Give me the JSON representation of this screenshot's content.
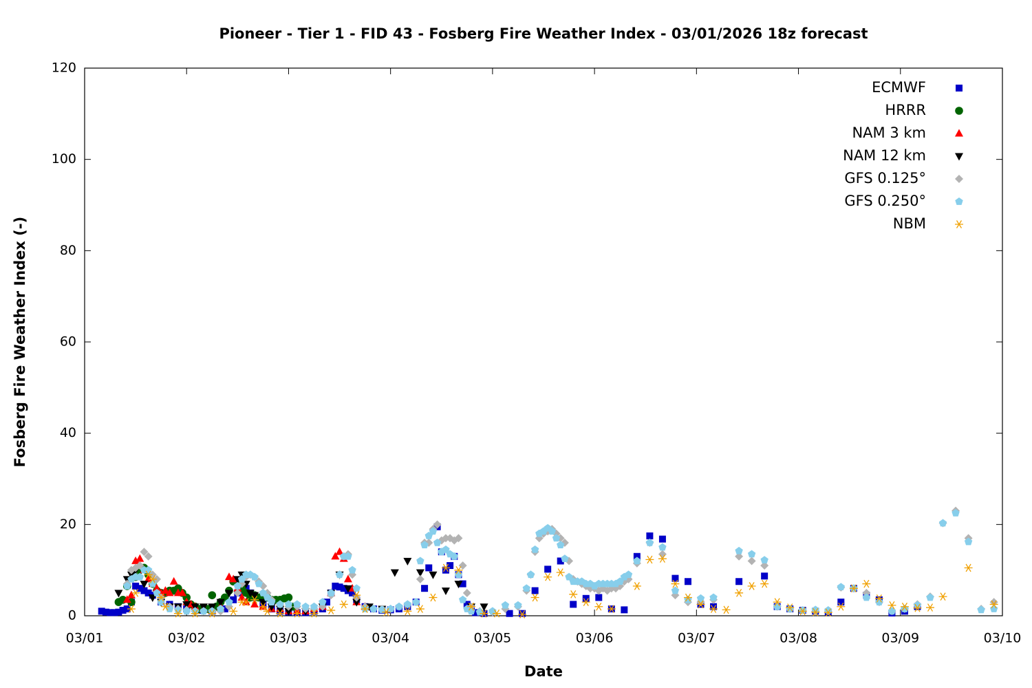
{
  "chart_data": {
    "type": "scatter",
    "title": "Pioneer - Tier 1 - FID 43 - Fosberg Fire Weather Index - 03/01/2026 18z forecast",
    "x_label": "Date",
    "y_label": "Fosberg Fire Weather Index (-)",
    "xlim": [
      0,
      216
    ],
    "xticks": [
      {
        "value": 0,
        "label": "03/01"
      },
      {
        "value": 24,
        "label": "03/02"
      },
      {
        "value": 48,
        "label": "03/03"
      },
      {
        "value": 72,
        "label": "03/04"
      },
      {
        "value": 96,
        "label": "03/05"
      },
      {
        "value": 120,
        "label": "03/06"
      },
      {
        "value": 144,
        "label": "03/07"
      },
      {
        "value": 168,
        "label": "03/08"
      },
      {
        "value": 192,
        "label": "03/09"
      },
      {
        "value": 216,
        "label": "03/10"
      }
    ],
    "ylim": [
      0,
      120
    ],
    "yticks": [
      0,
      20,
      40,
      60,
      80,
      100,
      120
    ],
    "grid": false,
    "legend": "upper right",
    "series": [
      {
        "name": "ECMWF",
        "color": "#0000c8",
        "marker": "square",
        "x": [
          4,
          5,
          6,
          7,
          8,
          9,
          10,
          11,
          12,
          13,
          14,
          15,
          16,
          18,
          20,
          22,
          24,
          27,
          30,
          33,
          35,
          36,
          37,
          38,
          39,
          40,
          42,
          44,
          46,
          48,
          50,
          52,
          54,
          56,
          57,
          58,
          59,
          60,
          61,
          62,
          63,
          64,
          66,
          68,
          70,
          72,
          74,
          76,
          78,
          80,
          81,
          83,
          84,
          85,
          86,
          87,
          88,
          89,
          90,
          91,
          92,
          94,
          100,
          103,
          106,
          109,
          112,
          115,
          118,
          121,
          124,
          127,
          130,
          133,
          136,
          139,
          142,
          145,
          148,
          154,
          160,
          163,
          166,
          169,
          172,
          175,
          178,
          181,
          184,
          187,
          190,
          193,
          196
        ],
        "values": [
          1,
          0.8,
          0.7,
          0.7,
          0.8,
          1.2,
          1.5,
          3,
          6.5,
          6,
          5.5,
          5,
          4.5,
          3,
          2.5,
          2,
          1.5,
          1.2,
          1,
          1.5,
          3.5,
          5,
          5.5,
          6,
          5,
          4,
          2.5,
          1.5,
          1,
          0.8,
          0.7,
          0.7,
          1,
          1.5,
          3,
          5,
          6.5,
          6.3,
          6,
          5.5,
          5,
          3.5,
          2,
          1.5,
          1.2,
          1.3,
          1.5,
          2,
          3,
          6,
          10.5,
          19.5,
          14,
          10,
          11,
          13,
          9,
          7,
          2.5,
          1.5,
          0.7,
          0.5,
          0.5,
          0.5,
          5.5,
          10.2,
          12,
          2.5,
          3.8,
          4,
          1.5,
          1.3,
          13,
          17.5,
          16.8,
          8.2,
          7.5,
          2.5,
          2,
          7.5,
          8.7,
          2,
          1.5,
          1.2,
          1,
          0.8,
          3,
          6,
          4.5,
          3.5,
          0.6,
          1,
          2
        ]
      },
      {
        "name": "HRRR",
        "color": "#006400",
        "marker": "circle",
        "x": [
          8,
          9,
          10,
          11,
          12,
          13,
          14,
          15,
          16,
          17,
          18,
          19,
          20,
          21,
          22,
          23,
          24,
          25,
          26,
          27,
          28,
          29,
          30,
          31,
          32,
          33,
          34,
          35,
          36,
          37,
          38,
          39,
          40,
          41,
          42,
          43,
          44,
          45,
          46,
          47,
          48,
          49
        ],
        "values": [
          3,
          3.5,
          6.5,
          3,
          8.5,
          10,
          10.5,
          9,
          7,
          5.5,
          5,
          5,
          5.5,
          5.5,
          6,
          5,
          4,
          2.5,
          2,
          1.5,
          1.2,
          1.5,
          4.5,
          2,
          3,
          4,
          5.5,
          7.5,
          7,
          6,
          5,
          4,
          4.5,
          4,
          4.5,
          4,
          3.5,
          3.5,
          3.5,
          3.8,
          4,
          2
        ]
      },
      {
        "name": "NAM 3 km",
        "color": "#ff0000",
        "marker": "triangle",
        "x": [
          10,
          11,
          12,
          13,
          14,
          15,
          16,
          17,
          18,
          19,
          20,
          21,
          22,
          23,
          24,
          25,
          26,
          28,
          30,
          32,
          34,
          35,
          36,
          37,
          38,
          40,
          42,
          44,
          46,
          48,
          50,
          52,
          54,
          56,
          58,
          59,
          60,
          61,
          62,
          63,
          64,
          66
        ],
        "values": [
          3.5,
          4.5,
          12,
          12.5,
          10,
          8,
          7,
          6,
          5,
          5.5,
          5,
          7.5,
          5,
          5,
          3,
          2.5,
          2,
          1.5,
          1.5,
          2,
          8.5,
          8,
          6,
          4,
          3,
          2.5,
          2,
          1.5,
          1.5,
          1,
          1,
          1,
          1.5,
          2,
          5,
          13,
          14,
          12.5,
          8,
          6,
          3,
          2
        ]
      },
      {
        "name": "NAM 12 km",
        "color": "#000000",
        "marker": "triangle-down",
        "x": [
          8,
          10,
          11,
          12,
          14,
          16,
          18,
          20,
          22,
          24,
          26,
          28,
          30,
          32,
          34,
          36,
          37,
          38,
          39,
          40,
          42,
          44,
          46,
          48,
          52,
          56,
          58,
          60,
          62,
          64,
          67,
          70,
          73,
          76,
          79,
          82,
          85,
          88,
          91,
          94
        ],
        "values": [
          5,
          8,
          9,
          10,
          7,
          4,
          3,
          2,
          2,
          2.5,
          2,
          2,
          2,
          3,
          5,
          8,
          9,
          7,
          5,
          4.5,
          3,
          2,
          1.5,
          1,
          1,
          2,
          5,
          9,
          6,
          3,
          2,
          1.5,
          9.5,
          12,
          9.5,
          9,
          5.5,
          7,
          2,
          2
        ]
      },
      {
        "name": "GFS 0.125°",
        "color": "#b3b3b3",
        "marker": "diamond",
        "x": [
          10,
          11,
          12,
          13,
          14,
          15,
          16,
          17,
          18,
          20,
          22,
          24,
          26,
          28,
          30,
          32,
          34,
          36,
          37,
          38,
          39,
          40,
          41,
          42,
          43,
          44,
          46,
          48,
          50,
          52,
          54,
          56,
          58,
          60,
          61,
          62,
          63,
          64,
          66,
          68,
          70,
          72,
          74,
          76,
          78,
          79,
          80,
          81,
          82,
          83,
          84,
          85,
          86,
          87,
          88,
          89,
          90,
          91,
          93,
          96,
          99,
          102,
          104,
          105,
          106,
          107,
          108,
          109,
          110,
          111,
          112,
          113,
          114,
          115,
          116,
          117,
          118,
          119,
          120,
          121,
          122,
          123,
          124,
          125,
          126,
          127,
          128,
          130,
          133,
          136,
          139,
          142,
          145,
          148,
          154,
          157,
          160,
          163,
          166,
          169,
          172,
          175,
          178,
          181,
          184,
          187,
          190,
          193,
          196,
          199,
          202,
          205,
          208,
          211,
          214
        ],
        "values": [
          7,
          10,
          10.5,
          11,
          14,
          13,
          9,
          8,
          4,
          2,
          1.5,
          1.3,
          1,
          1,
          1,
          1,
          2,
          5,
          7,
          8.5,
          9,
          8.5,
          7.5,
          6.5,
          5,
          3.5,
          2.5,
          2,
          2,
          1.5,
          1.5,
          2,
          4.5,
          9,
          13,
          13.5,
          9,
          4,
          2,
          1.5,
          1.5,
          1.5,
          2,
          2.5,
          3,
          8,
          16,
          16,
          19,
          20,
          16.5,
          17,
          17,
          16.5,
          17,
          11,
          5,
          2,
          1,
          0.8,
          1.5,
          2,
          5.5,
          9,
          14,
          17,
          18,
          18.5,
          19,
          18,
          17,
          16,
          12,
          8,
          7.5,
          7,
          6.5,
          6,
          6,
          5.5,
          6,
          5.5,
          6,
          6,
          6.5,
          7.5,
          8,
          11.5,
          16,
          13.5,
          4.5,
          3,
          3,
          3.5,
          13,
          12,
          11,
          2,
          1.5,
          1.2,
          1,
          1,
          6.2,
          6,
          5,
          3,
          1,
          1.5,
          2.5,
          4.2,
          20.3,
          23,
          17,
          1.5,
          3
        ]
      },
      {
        "name": "GFS 0.250°",
        "color": "#87ceeb",
        "marker": "pentagon",
        "x": [
          10,
          11,
          12,
          13,
          14,
          15,
          16,
          17,
          18,
          20,
          22,
          24,
          26,
          28,
          30,
          32,
          34,
          36,
          37,
          38,
          39,
          40,
          41,
          42,
          43,
          44,
          46,
          48,
          50,
          52,
          54,
          56,
          58,
          60,
          61,
          62,
          63,
          64,
          66,
          68,
          70,
          72,
          74,
          76,
          78,
          79,
          80,
          81,
          82,
          83,
          84,
          85,
          86,
          87,
          88,
          89,
          90,
          91,
          93,
          96,
          99,
          102,
          104,
          105,
          106,
          107,
          108,
          109,
          110,
          111,
          112,
          113,
          114,
          115,
          116,
          117,
          118,
          119,
          120,
          121,
          122,
          123,
          124,
          125,
          126,
          127,
          128,
          130,
          133,
          136,
          139,
          142,
          145,
          148,
          154,
          157,
          160,
          163,
          166,
          169,
          172,
          175,
          178,
          181,
          184,
          187,
          190,
          193,
          196,
          199,
          202,
          205,
          208,
          211,
          214
        ],
        "values": [
          6.5,
          8,
          8.5,
          8.5,
          10,
          10,
          7,
          5,
          3,
          1.5,
          1.2,
          1,
          1,
          1,
          1,
          1.5,
          3,
          6.5,
          8,
          9,
          9,
          8.5,
          7,
          5,
          4,
          3,
          2.5,
          2.5,
          2.5,
          2,
          2,
          3,
          5,
          9,
          13,
          13,
          10,
          6,
          1.5,
          1.5,
          1.3,
          1.5,
          2,
          2.5,
          3,
          12,
          15.5,
          17.5,
          18.5,
          16,
          14,
          14.5,
          13.5,
          13,
          9,
          3.5,
          1.5,
          1,
          0.8,
          1,
          2.3,
          2.3,
          6,
          9,
          14.5,
          18,
          18.5,
          19.2,
          18.5,
          17,
          15.5,
          12.5,
          8.5,
          7.5,
          7.5,
          7.5,
          7,
          7,
          6.5,
          7,
          7,
          7,
          7,
          7,
          7.5,
          8.5,
          9,
          12,
          16,
          15,
          5.5,
          3.5,
          3.8,
          4,
          14.2,
          13.5,
          12.2,
          2,
          1.5,
          1.2,
          1.3,
          1.2,
          6.3,
          6,
          4,
          3,
          1,
          1.5,
          2.3,
          4,
          20.3,
          22.5,
          16.2,
          1.3,
          1.5
        ]
      },
      {
        "name": "NBM",
        "color": "#f0a000",
        "marker": "asterisk",
        "x": [
          11,
          12,
          15,
          16,
          18,
          19,
          22,
          26,
          30,
          35,
          37,
          38,
          40,
          42,
          43,
          46,
          50,
          54,
          58,
          61,
          64,
          66,
          71,
          76,
          79,
          82,
          85,
          88,
          91,
          94,
          97,
          103,
          106,
          109,
          112,
          115,
          118,
          121,
          124,
          130,
          133,
          136,
          139,
          142,
          145,
          148,
          151,
          154,
          157,
          160,
          163,
          166,
          169,
          172,
          175,
          178,
          181,
          184,
          187,
          190,
          193,
          196,
          199,
          202,
          208,
          214
        ],
        "values": [
          1.5,
          5,
          9,
          8,
          4,
          2,
          0.5,
          0.5,
          0.5,
          1,
          3,
          3,
          3.5,
          2,
          1,
          0.5,
          0.5,
          0.5,
          1.2,
          2.5,
          4.5,
          1.5,
          0.8,
          1,
          1.5,
          4,
          10.5,
          10,
          2,
          0.5,
          0.5,
          0.3,
          4,
          8.5,
          9.5,
          4.7,
          3,
          2,
          1.5,
          6.5,
          12.3,
          12.5,
          7,
          4,
          2.5,
          1.5,
          1.3,
          5,
          6.5,
          7,
          3,
          1.8,
          1,
          0.8,
          0.7,
          2,
          6,
          7,
          3.8,
          2.3,
          2,
          1.7,
          1.8,
          4.2,
          10.5,
          2.5
        ]
      }
    ]
  }
}
